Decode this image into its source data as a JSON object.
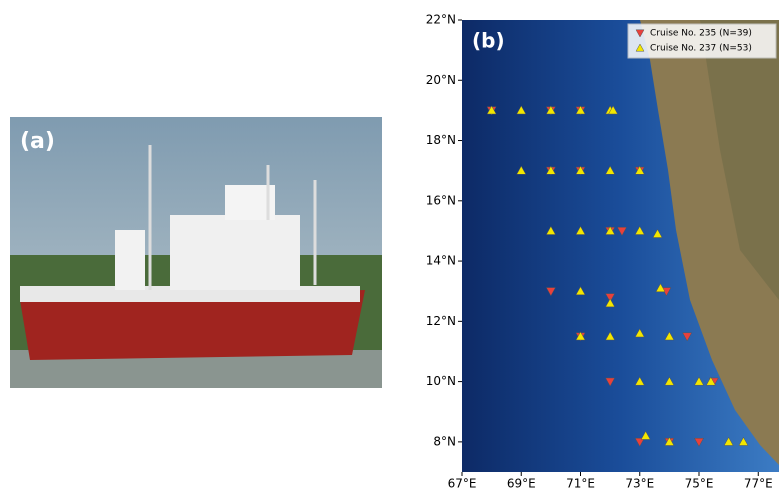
{
  "panel_a": {
    "label": "(a)"
  },
  "chart_data": {
    "type": "scatter",
    "title": "(b)",
    "xlim": [
      67,
      77.7
    ],
    "ylim": [
      7,
      22
    ],
    "xticks": [
      {
        "value": 67,
        "label": "67°E"
      },
      {
        "value": 69,
        "label": "69°E"
      },
      {
        "value": 71,
        "label": "71°E"
      },
      {
        "value": 73,
        "label": "73°E"
      },
      {
        "value": 75,
        "label": "75°E"
      },
      {
        "value": 77,
        "label": "77°E"
      }
    ],
    "yticks": [
      {
        "value": 8,
        "label": "8°N"
      },
      {
        "value": 10,
        "label": "10°N"
      },
      {
        "value": 12,
        "label": "12°N"
      },
      {
        "value": 14,
        "label": "14°N"
      },
      {
        "value": 16,
        "label": "16°N"
      },
      {
        "value": 18,
        "label": "18°N"
      },
      {
        "value": 20,
        "label": "20°N"
      },
      {
        "value": 22,
        "label": "22°N"
      }
    ],
    "legend": "upper right",
    "series": [
      {
        "name": "Cruise No. 235 (N=39)",
        "color": "#e8403c",
        "marker": "down",
        "x": [
          68,
          70,
          71,
          70,
          71,
          73,
          72,
          72.4,
          70,
          72,
          73.9,
          71,
          74.6,
          72,
          75.5,
          73,
          74,
          75
        ],
        "y": [
          19,
          19,
          19,
          17,
          17,
          17,
          15,
          15,
          13,
          12.8,
          13,
          11.5,
          11.5,
          10,
          10,
          8,
          8,
          8
        ]
      },
      {
        "name": "Cruise No. 237 (N=53)",
        "color": "#f2e600",
        "marker": "up",
        "x": [
          68,
          69,
          70,
          71,
          72,
          72.1,
          69,
          70,
          71,
          72,
          73,
          70,
          71,
          72,
          73,
          73.6,
          71,
          72,
          73.7,
          71,
          72,
          73,
          74,
          73,
          74,
          75,
          75.4,
          73.2,
          74,
          76,
          76.5
        ],
        "y": [
          19,
          19,
          19,
          19,
          19,
          19,
          17,
          17,
          17,
          17,
          17,
          15,
          15,
          15,
          15,
          14.9,
          13,
          12.6,
          13.1,
          11.5,
          11.5,
          11.6,
          11.5,
          10,
          10,
          10,
          10,
          8.2,
          8,
          8,
          8
        ]
      }
    ]
  }
}
